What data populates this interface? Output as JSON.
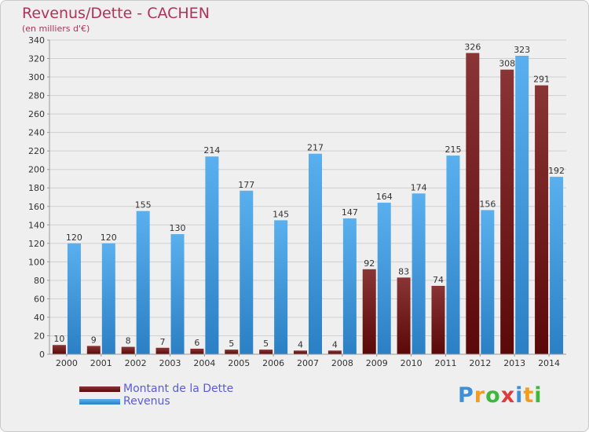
{
  "chart_data": {
    "type": "bar",
    "title": "Revenus/Dette - CACHEN",
    "subtitle": "(en milliers d'€)",
    "categories": [
      "2000",
      "2001",
      "2002",
      "2003",
      "2004",
      "2005",
      "2006",
      "2007",
      "2008",
      "2009",
      "2010",
      "2011",
      "2012",
      "2013",
      "2014"
    ],
    "series": [
      {
        "name": "Montant de la Dette",
        "color": "#7a1c1c",
        "values": [
          10,
          9,
          8,
          7,
          6,
          5,
          5,
          4,
          4,
          92,
          83,
          74,
          326,
          308,
          291
        ]
      },
      {
        "name": "Revenus",
        "color": "#4aa3e6",
        "values": [
          120,
          120,
          155,
          130,
          214,
          177,
          145,
          217,
          147,
          164,
          174,
          215,
          156,
          323,
          192
        ]
      }
    ],
    "ylim": [
      0,
      340
    ],
    "yticks": [
      0,
      20,
      40,
      60,
      80,
      100,
      120,
      140,
      160,
      180,
      200,
      220,
      240,
      260,
      280,
      300,
      320,
      340
    ],
    "grid": true,
    "legend_position": "bottom-left"
  },
  "legend": {
    "debt_label": "Montant de la Dette",
    "revenue_label": "Revenus"
  },
  "logo": {
    "letters": [
      {
        "char": "P",
        "color": "#3d8fd6"
      },
      {
        "char": "r",
        "color": "#f29d1f"
      },
      {
        "char": "o",
        "color": "#3db83d"
      },
      {
        "char": "x",
        "color": "#e03b3b"
      },
      {
        "char": "i",
        "color": "#3d8fd6"
      },
      {
        "char": "t",
        "color": "#f29d1f"
      },
      {
        "char": "i",
        "color": "#3db83d"
      }
    ]
  }
}
